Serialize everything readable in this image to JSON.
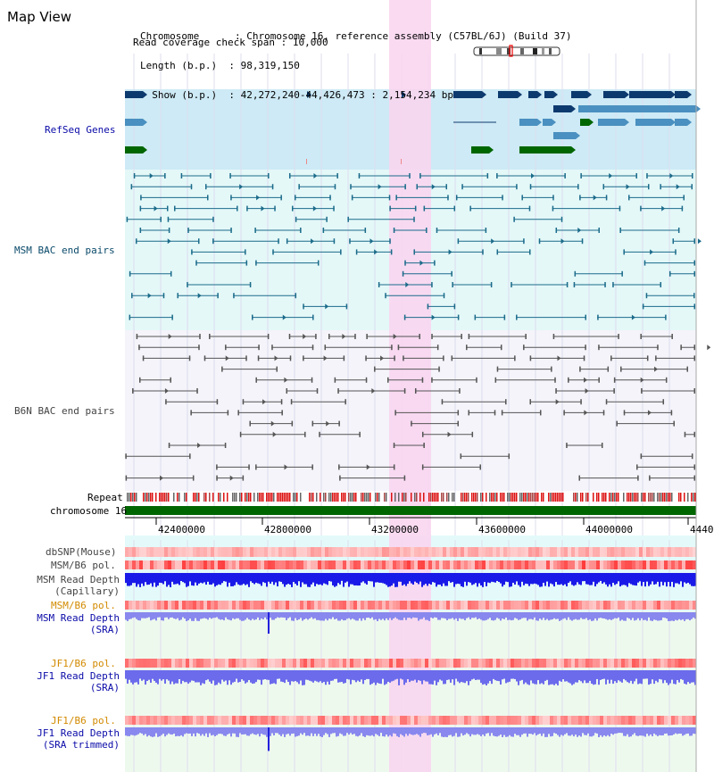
{
  "title": "Map View",
  "header": {
    "rows": [
      {
        "key": "Chromosome     ",
        "value": "Chromosome 16, reference assembly (C57BL/6J) (Build 37)"
      },
      {
        "key": "Length (b.p.) ",
        "value": "98,319,150"
      },
      {
        "key": "  Show (b.p.) ",
        "value": "42,272,240-44,426,473 : 2,154,234 bp"
      },
      {
        "key": "Read coverage check span",
        "value": "10,000"
      }
    ]
  },
  "tracks": {
    "refseq": "RefSeq Genes",
    "msm_bac": "MSM BAC end pairs",
    "b6n_bac": "B6N BAC end pairs",
    "repeat": "Repeat",
    "chromosome": "chromosome 16",
    "dbsnp": "dbSNP(Mouse)",
    "msm_b6_pol_1": "MSM/B6 pol.",
    "msm_depth_cap_1": "MSM Read Depth",
    "msm_depth_cap_2": "(Capillary)",
    "msm_b6_pol_2": "MSM/B6 pol.",
    "msm_depth_sra_1": "MSM Read Depth",
    "msm_depth_sra_2": "(SRA)",
    "jf1_pol_1": "JF1/B6 pol.",
    "jf1_depth_sra_1": "JF1 Read Depth",
    "jf1_depth_sra_2": "(SRA)",
    "jf1_pol_2": "JF1/B6 pol.",
    "jf1_depth_trim_1": "JF1 Read Depth",
    "jf1_depth_trim_2": "(SRA trimmed)"
  },
  "axis": {
    "ticks": [
      "42400000",
      "42800000",
      "43200000",
      "43600000",
      "44000000",
      "4440"
    ]
  },
  "colors": {
    "refseq_dark": "#0d3a6e",
    "refseq_light": "#4a90c0",
    "refseq_green": "#006600",
    "msm_pair": "#1b6b8a",
    "b6n_pair": "#555555",
    "highlight": "#f8d8f0",
    "chrom_bar": "#006600",
    "depth_blue": "#2222ee"
  }
}
